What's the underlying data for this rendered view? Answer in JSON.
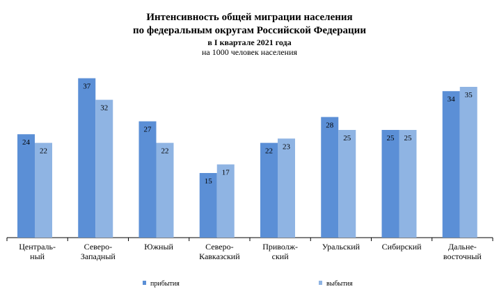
{
  "chart_data": {
    "type": "bar",
    "title_line1": "Интенсивность  общей  миграции  населения",
    "title_line2": "по  федеральным  округам  Российской  Федерации",
    "subtitle": "в I квартале 2021 года",
    "unit": "на 1000 человек населения",
    "categories": [
      [
        "Централь-",
        "ный"
      ],
      [
        "Северо-",
        "Западный"
      ],
      [
        "Южный"
      ],
      [
        "Северо-",
        "Кавказский"
      ],
      [
        "Приволж-",
        "ский"
      ],
      [
        "Уральский"
      ],
      [
        "Сибирский"
      ],
      [
        "Дальне-",
        "восточный"
      ]
    ],
    "series": [
      {
        "name": "прибытия",
        "color": "#5B8FD6",
        "values": [
          24,
          37,
          27,
          15,
          22,
          28,
          25,
          34
        ]
      },
      {
        "name": "выбытия",
        "color": "#8FB4E3",
        "values": [
          22,
          32,
          22,
          17,
          23,
          25,
          25,
          35
        ]
      }
    ],
    "ylim": [
      0,
      40
    ],
    "grid": false,
    "legend": "bottom"
  }
}
